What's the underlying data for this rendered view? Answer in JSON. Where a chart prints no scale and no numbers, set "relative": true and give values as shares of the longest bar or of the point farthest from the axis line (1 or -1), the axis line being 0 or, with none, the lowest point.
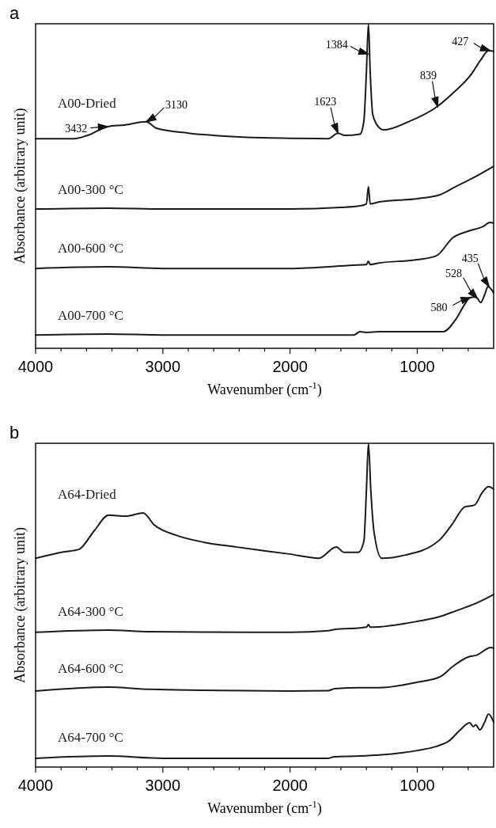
{
  "chart_data": [
    {
      "type": "line",
      "title": "a",
      "xlabel": "Wavenumber (cm$^{-1}$)",
      "ylabel": "Absorbance (arbitrary unit)",
      "relative": true,
      "xlim": [
        4000,
        400
      ],
      "xticks": [
        4000,
        {
          "value": 3800,
          "label": null
        },
        {
          "value": 3600,
          "label": null
        },
        {
          "value": 3400,
          "label": null
        },
        {
          "value": 3200,
          "label": null
        },
        3000,
        {
          "value": 2800,
          "label": null
        },
        {
          "value": 2600,
          "label": null
        },
        {
          "value": 2400,
          "label": null
        },
        {
          "value": 2200,
          "label": null
        },
        2000,
        {
          "value": 1800,
          "label": null
        },
        {
          "value": 1600,
          "label": null
        },
        {
          "value": 1400,
          "label": null
        },
        {
          "value": 1200,
          "label": null
        },
        1000,
        {
          "value": 800,
          "label": null
        },
        {
          "value": 600,
          "label": null
        }
      ],
      "tick_labels": "x",
      "grid": false,
      "marker": "none",
      "line_style": "solid",
      "series": [
        {
          "name": "A00-Dried",
          "color": "#1a1a1a",
          "x": [
            4000,
            3700,
            3600,
            3432,
            3300,
            3130,
            3050,
            2800,
            2400,
            2000,
            1700,
            1623,
            1570,
            1450,
            1420,
            1400,
            1384,
            1370,
            1350,
            1300,
            1266,
            1070,
            847,
            724,
            576,
            502,
            440,
            400
          ],
          "values": [
            0.646,
            0.646,
            0.655,
            0.683,
            0.688,
            0.698,
            0.678,
            0.663,
            0.651,
            0.647,
            0.646,
            0.663,
            0.656,
            0.66,
            0.7,
            0.85,
            1.0,
            0.85,
            0.72,
            0.68,
            0.673,
            0.698,
            0.744,
            0.785,
            0.844,
            0.888,
            0.917,
            0.915
          ]
        },
        {
          "name": "A00-300 °C",
          "color": "#1a1a1a",
          "x": [
            4000,
            3430,
            3000,
            2000,
            1600,
            1450,
            1400,
            1384,
            1370,
            1300,
            1000,
            822,
            699,
            576,
            400
          ],
          "values": [
            0.429,
            0.432,
            0.429,
            0.429,
            0.434,
            0.439,
            0.445,
            0.498,
            0.445,
            0.451,
            0.461,
            0.473,
            0.498,
            0.522,
            0.561
          ]
        },
        {
          "name": "A00-600 °C",
          "color": "#1a1a1a",
          "x": [
            4000,
            3430,
            3000,
            2000,
            1500,
            1400,
            1384,
            1370,
            1300,
            1000,
            850,
            720,
            600,
            480,
            430,
            400
          ],
          "values": [
            0.246,
            0.251,
            0.246,
            0.246,
            0.256,
            0.258,
            0.268,
            0.258,
            0.263,
            0.273,
            0.285,
            0.341,
            0.361,
            0.376,
            0.388,
            0.386
          ]
        },
        {
          "name": "A00-700 °C",
          "color": "#1a1a1a",
          "x": [
            4000,
            3430,
            3000,
            2000,
            1500,
            1450,
            1400,
            1300,
            900,
            798,
            699,
            625,
            588,
            545,
            528,
            502,
            465,
            446,
            400
          ],
          "values": [
            0.041,
            0.044,
            0.041,
            0.041,
            0.041,
            0.051,
            0.049,
            0.051,
            0.051,
            0.051,
            0.088,
            0.137,
            0.156,
            0.158,
            0.154,
            0.141,
            0.171,
            0.19,
            0.171
          ]
        }
      ],
      "annotations": [
        {
          "text": "3432",
          "x": 3432,
          "y": 0.683
        },
        {
          "text": "3130",
          "x": 3130,
          "y": 0.698
        },
        {
          "text": "1623",
          "x": 1623,
          "y": 0.663
        },
        {
          "text": "1384",
          "x": 1384,
          "y": 0.907
        },
        {
          "text": "839",
          "x": 839,
          "y": 0.744
        },
        {
          "text": "427",
          "x": 427,
          "y": 0.917
        },
        {
          "text": "580",
          "x": 580,
          "y": 0.156
        },
        {
          "text": "528",
          "x": 528,
          "y": 0.154
        },
        {
          "text": "435",
          "x": 435,
          "y": 0.19
        }
      ]
    },
    {
      "type": "line",
      "title": "b",
      "xlabel": "Wavenumber (cm$^{-1}$)",
      "ylabel": "Absorbance (arbitrary unit)",
      "relative": true,
      "xlim": [
        4000,
        400
      ],
      "xticks": [
        4000,
        {
          "value": 3800,
          "label": null
        },
        {
          "value": 3600,
          "label": null
        },
        {
          "value": 3400,
          "label": null
        },
        {
          "value": 3200,
          "label": null
        },
        3000,
        {
          "value": 2800,
          "label": null
        },
        {
          "value": 2600,
          "label": null
        },
        {
          "value": 2400,
          "label": null
        },
        {
          "value": 2200,
          "label": null
        },
        2000,
        {
          "value": 1800,
          "label": null
        },
        {
          "value": 1600,
          "label": null
        },
        {
          "value": 1400,
          "label": null
        },
        {
          "value": 1200,
          "label": null
        },
        1000,
        {
          "value": 800,
          "label": null
        },
        {
          "value": 600,
          "label": null
        }
      ],
      "tick_labels": "x",
      "grid": false,
      "marker": "none",
      "line_style": "solid",
      "series": [
        {
          "name": "A64-Dried",
          "color": "#1a1a1a",
          "x": [
            4000,
            3772,
            3661,
            3537,
            3426,
            3290,
            3155,
            3068,
            2896,
            2673,
            2427,
            2007,
            1773,
            1637,
            1575,
            1464,
            1420,
            1400,
            1384,
            1365,
            1340,
            1279,
            1094,
            872,
            823,
            724,
            625,
            551,
            489,
            440,
            400
          ],
          "values": [
            0.645,
            0.665,
            0.672,
            0.731,
            0.778,
            0.775,
            0.785,
            0.748,
            0.716,
            0.694,
            0.68,
            0.658,
            0.645,
            0.68,
            0.663,
            0.663,
            0.697,
            0.853,
            1.0,
            0.853,
            0.726,
            0.645,
            0.655,
            0.687,
            0.702,
            0.751,
            0.804,
            0.809,
            0.848,
            0.866,
            0.858
          ]
        },
        {
          "name": "A64-300 °C",
          "color": "#1a1a1a",
          "x": [
            4000,
            3430,
            3100,
            2000,
            1700,
            1650,
            1450,
            1400,
            1384,
            1370,
            1300,
            1000,
            820,
            700,
            550,
            400
          ],
          "values": [
            0.416,
            0.423,
            0.418,
            0.416,
            0.421,
            0.425,
            0.43,
            0.432,
            0.44,
            0.432,
            0.433,
            0.45,
            0.465,
            0.482,
            0.504,
            0.533
          ]
        },
        {
          "name": "A64-600 °C",
          "color": "#1a1a1a",
          "x": [
            4000,
            3430,
            3100,
            2000,
            1700,
            1650,
            1450,
            1300,
            1000,
            820,
            720,
            600,
            538,
            420,
            400
          ],
          "values": [
            0.235,
            0.247,
            0.24,
            0.235,
            0.236,
            0.242,
            0.245,
            0.245,
            0.262,
            0.279,
            0.311,
            0.34,
            0.345,
            0.369,
            0.367
          ]
        },
        {
          "name": "A64-700 °C",
          "color": "#1a1a1a",
          "x": [
            4000,
            3430,
            3000,
            1700,
            1650,
            1450,
            1300,
            1000,
            850,
            749,
            662,
            588,
            560,
            540,
            508,
            470,
            440,
            400
          ],
          "values": [
            0.027,
            0.034,
            0.027,
            0.027,
            0.032,
            0.034,
            0.037,
            0.051,
            0.064,
            0.081,
            0.115,
            0.137,
            0.125,
            0.13,
            0.115,
            0.139,
            0.164,
            0.139
          ]
        }
      ]
    }
  ]
}
